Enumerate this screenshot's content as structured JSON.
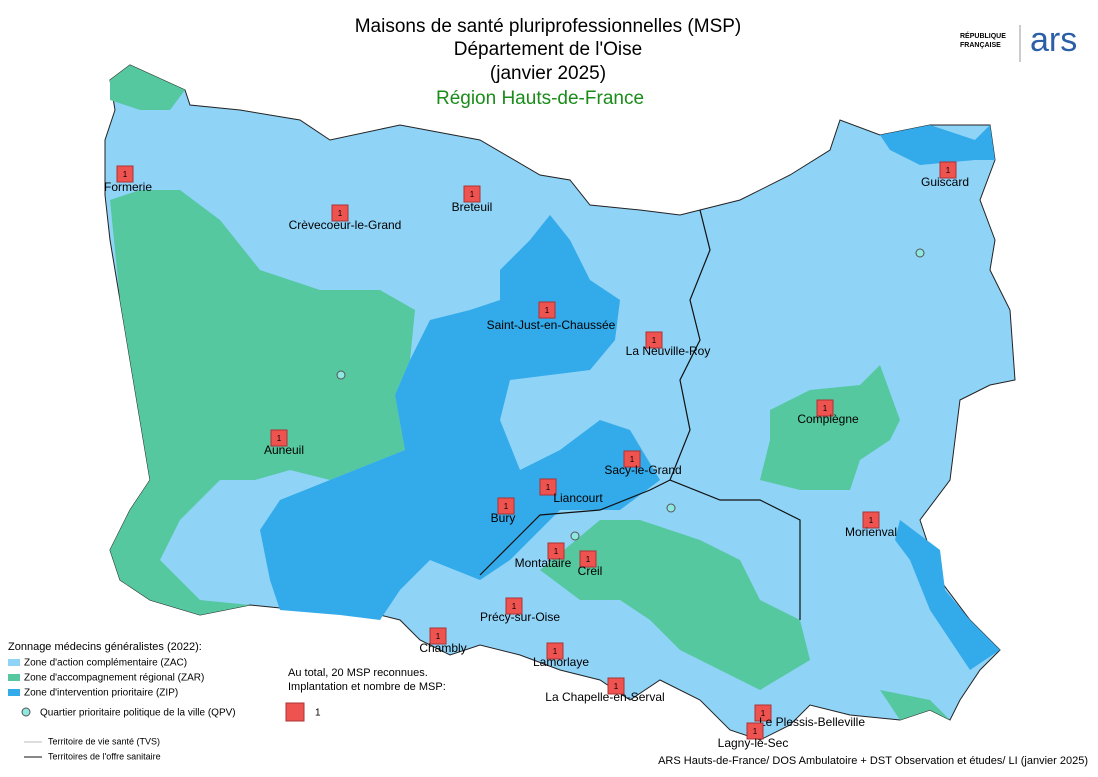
{
  "header": {
    "title_lines": [
      "Maisons de santé pluriprofessionnelles (MSP)",
      "Département de l'Oise",
      "(janvier 2025)"
    ],
    "subtitle": "Région Hauts-de-France",
    "logo_rf": [
      "RÉPUBLIQUE",
      "FRANÇAISE"
    ],
    "logo_ars": "ars"
  },
  "towns": [
    {
      "name": "Formerie",
      "count": "1"
    },
    {
      "name": "Crèvecoeur-le-Grand",
      "count": "1"
    },
    {
      "name": "Breteuil",
      "count": "1"
    },
    {
      "name": "Guiscard",
      "count": "1"
    },
    {
      "name": "Saint-Just-en-Chaussée",
      "count": "1"
    },
    {
      "name": "La Neuville-Roy",
      "count": "1"
    },
    {
      "name": "Compiègne",
      "count": "1"
    },
    {
      "name": "Auneuil",
      "count": "1"
    },
    {
      "name": "Sacy-le-Grand",
      "count": "1"
    },
    {
      "name": "Liancourt",
      "count": "1"
    },
    {
      "name": "Bury",
      "count": "1"
    },
    {
      "name": "Morienval",
      "count": "1"
    },
    {
      "name": "Montataire",
      "count": "1"
    },
    {
      "name": "Creil",
      "count": "1"
    },
    {
      "name": "Précy-sur-Oise",
      "count": "1"
    },
    {
      "name": "Chambly",
      "count": "1"
    },
    {
      "name": "Lamorlaye",
      "count": "1"
    },
    {
      "name": "La Chapelle-en-Serval",
      "count": "1"
    },
    {
      "name": "Le Plessis-Belleville",
      "count": "1"
    },
    {
      "name": "Lagny-le-Sec",
      "count": "1"
    }
  ],
  "legend": {
    "title": "Zonnage médecins généralistes (2022):",
    "zones": [
      "Zone d'action complémentaire (ZAC)",
      "Zone d'accompagnement régional (ZAR)",
      "Zone d'intervention prioritaire (ZIP)"
    ],
    "qpv": "Quartier prioritaire politique de la ville (QPV)",
    "total": "Au total, 20 MSP reconnues.",
    "implantation": "Implantation et nombre de MSP:",
    "marker_label": "1",
    "tvs": "Territoire de vie santé (TVS)",
    "tos": "Territoires de l'offre sanitaire"
  },
  "source": "ARS Hauts-de-France/ DOS Ambulatoire + DST Observation et études/ LI (janvier 2025)"
}
